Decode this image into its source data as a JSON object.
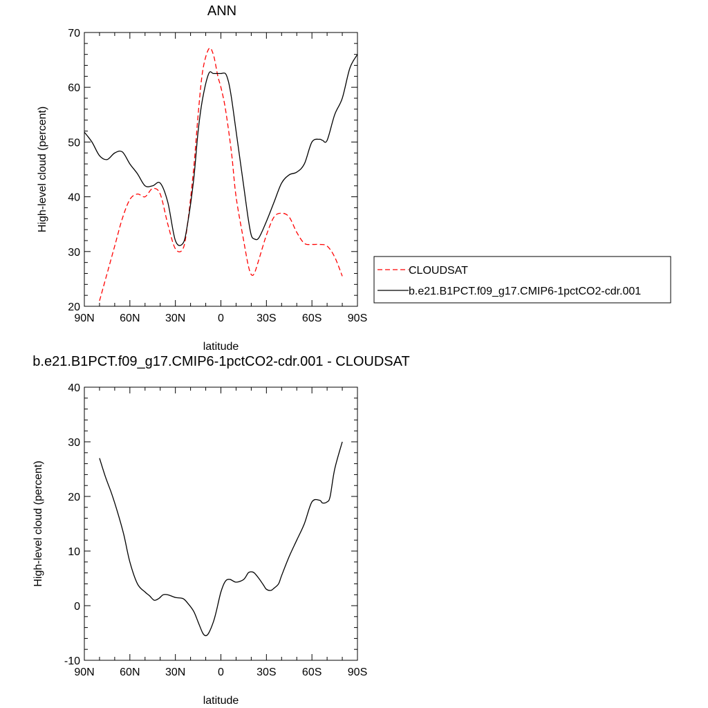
{
  "chart_data": [
    {
      "type": "line",
      "title": "ANN",
      "xlabel": "latitude",
      "ylabel": "High-level cloud (percent)",
      "xlim": [
        -90,
        90
      ],
      "ylim": [
        20,
        70
      ],
      "x_ticks": [
        -90,
        -60,
        -30,
        0,
        30,
        60,
        90
      ],
      "x_tick_labels": [
        "90N",
        "60N",
        "30N",
        "0",
        "30S",
        "60S",
        "90S"
      ],
      "y_ticks": [
        20,
        30,
        40,
        50,
        60,
        70
      ],
      "y_tick_labels": [
        "20",
        "30",
        "40",
        "50",
        "60",
        "70"
      ],
      "grid": false,
      "legend_position": "right",
      "series": [
        {
          "name": "CLOUDSAT",
          "color": "#ff0000",
          "dash": "dashed",
          "x": [
            -80,
            -75,
            -70,
            -65,
            -60,
            -55,
            -50,
            -45,
            -40,
            -35,
            -30,
            -25,
            -22,
            -18,
            -15,
            -12,
            -8,
            -5,
            -2,
            0,
            3,
            7,
            10,
            15,
            18,
            20,
            22,
            25,
            30,
            35,
            40,
            45,
            50,
            55,
            60,
            65,
            70,
            75,
            80
          ],
          "y": [
            21,
            26,
            31,
            36,
            39.5,
            40.5,
            40,
            41.5,
            40.5,
            35,
            30.5,
            30.5,
            35,
            45,
            55,
            63,
            67,
            66,
            62,
            60,
            56,
            48,
            40,
            32,
            27.5,
            25.8,
            26,
            28.5,
            33,
            36.3,
            37,
            36.3,
            33.5,
            31.5,
            31.3,
            31.3,
            31,
            29,
            25.5
          ]
        },
        {
          "name": "b.e21.B1PCT.f09_g17.CMIP6-1pctCO2-cdr.001",
          "color": "#000000",
          "dash": "solid",
          "x": [
            -90,
            -85,
            -80,
            -75,
            -70,
            -65,
            -60,
            -55,
            -50,
            -45,
            -40,
            -35,
            -30,
            -25,
            -22,
            -18,
            -15,
            -12,
            -8,
            -5,
            -2,
            0,
            3,
            5,
            7,
            10,
            15,
            18,
            20,
            22,
            25,
            30,
            35,
            40,
            45,
            50,
            55,
            60,
            65,
            67,
            70,
            75,
            80,
            85,
            90
          ],
          "y": [
            51.8,
            50,
            47.5,
            46.8,
            48,
            48.2,
            46,
            44.2,
            42,
            42,
            42.5,
            39,
            32,
            31.5,
            35,
            43,
            52,
            58,
            62.5,
            62.5,
            62.5,
            62.5,
            62.5,
            61,
            58,
            52,
            42,
            36,
            33,
            32.3,
            32.5,
            35.5,
            39,
            42.5,
            44,
            44.5,
            46,
            50,
            50.5,
            50.3,
            50.3,
            55,
            58,
            63.5,
            66
          ]
        }
      ]
    },
    {
      "type": "line",
      "title": "b.e21.B1PCT.f09_g17.CMIP6-1pctCO2-cdr.001 - CLOUDSAT",
      "xlabel": "latitude",
      "ylabel": "High-level cloud (percent)",
      "xlim": [
        -90,
        90
      ],
      "ylim": [
        -10,
        40
      ],
      "x_ticks": [
        -90,
        -60,
        -30,
        0,
        30,
        60,
        90
      ],
      "x_tick_labels": [
        "90N",
        "60N",
        "30N",
        "0",
        "30S",
        "60S",
        "90S"
      ],
      "y_ticks": [
        -10,
        0,
        10,
        20,
        30,
        40
      ],
      "y_tick_labels": [
        "-10",
        "0",
        "10",
        "20",
        "30",
        "40"
      ],
      "grid": false,
      "series": [
        {
          "color": "#000000",
          "dash": "solid",
          "x": [
            -80,
            -76,
            -72,
            -68,
            -64,
            -60,
            -55,
            -50,
            -47,
            -44,
            -41,
            -38,
            -35,
            -30,
            -25,
            -22,
            -18,
            -15,
            -12,
            -10,
            -8,
            -5,
            -3,
            0,
            3,
            6,
            10,
            15,
            18,
            20,
            22,
            25,
            28,
            30,
            33,
            35,
            38,
            40,
            45,
            50,
            55,
            60,
            65,
            67,
            70,
            72,
            75,
            80
          ],
          "y": [
            27,
            23.5,
            20.5,
            17,
            13,
            8,
            4,
            2.5,
            1.8,
            1,
            1.3,
            2,
            2,
            1.5,
            1.3,
            0.5,
            -1,
            -3,
            -5,
            -5.5,
            -5,
            -3,
            -1,
            2.5,
            4.5,
            4.8,
            4.3,
            4.8,
            6,
            6.2,
            6,
            5,
            3.8,
            3,
            2.8,
            3.2,
            4,
            5.5,
            9,
            12,
            15,
            19,
            19.3,
            18.8,
            19,
            20,
            25,
            30
          ]
        }
      ]
    }
  ]
}
